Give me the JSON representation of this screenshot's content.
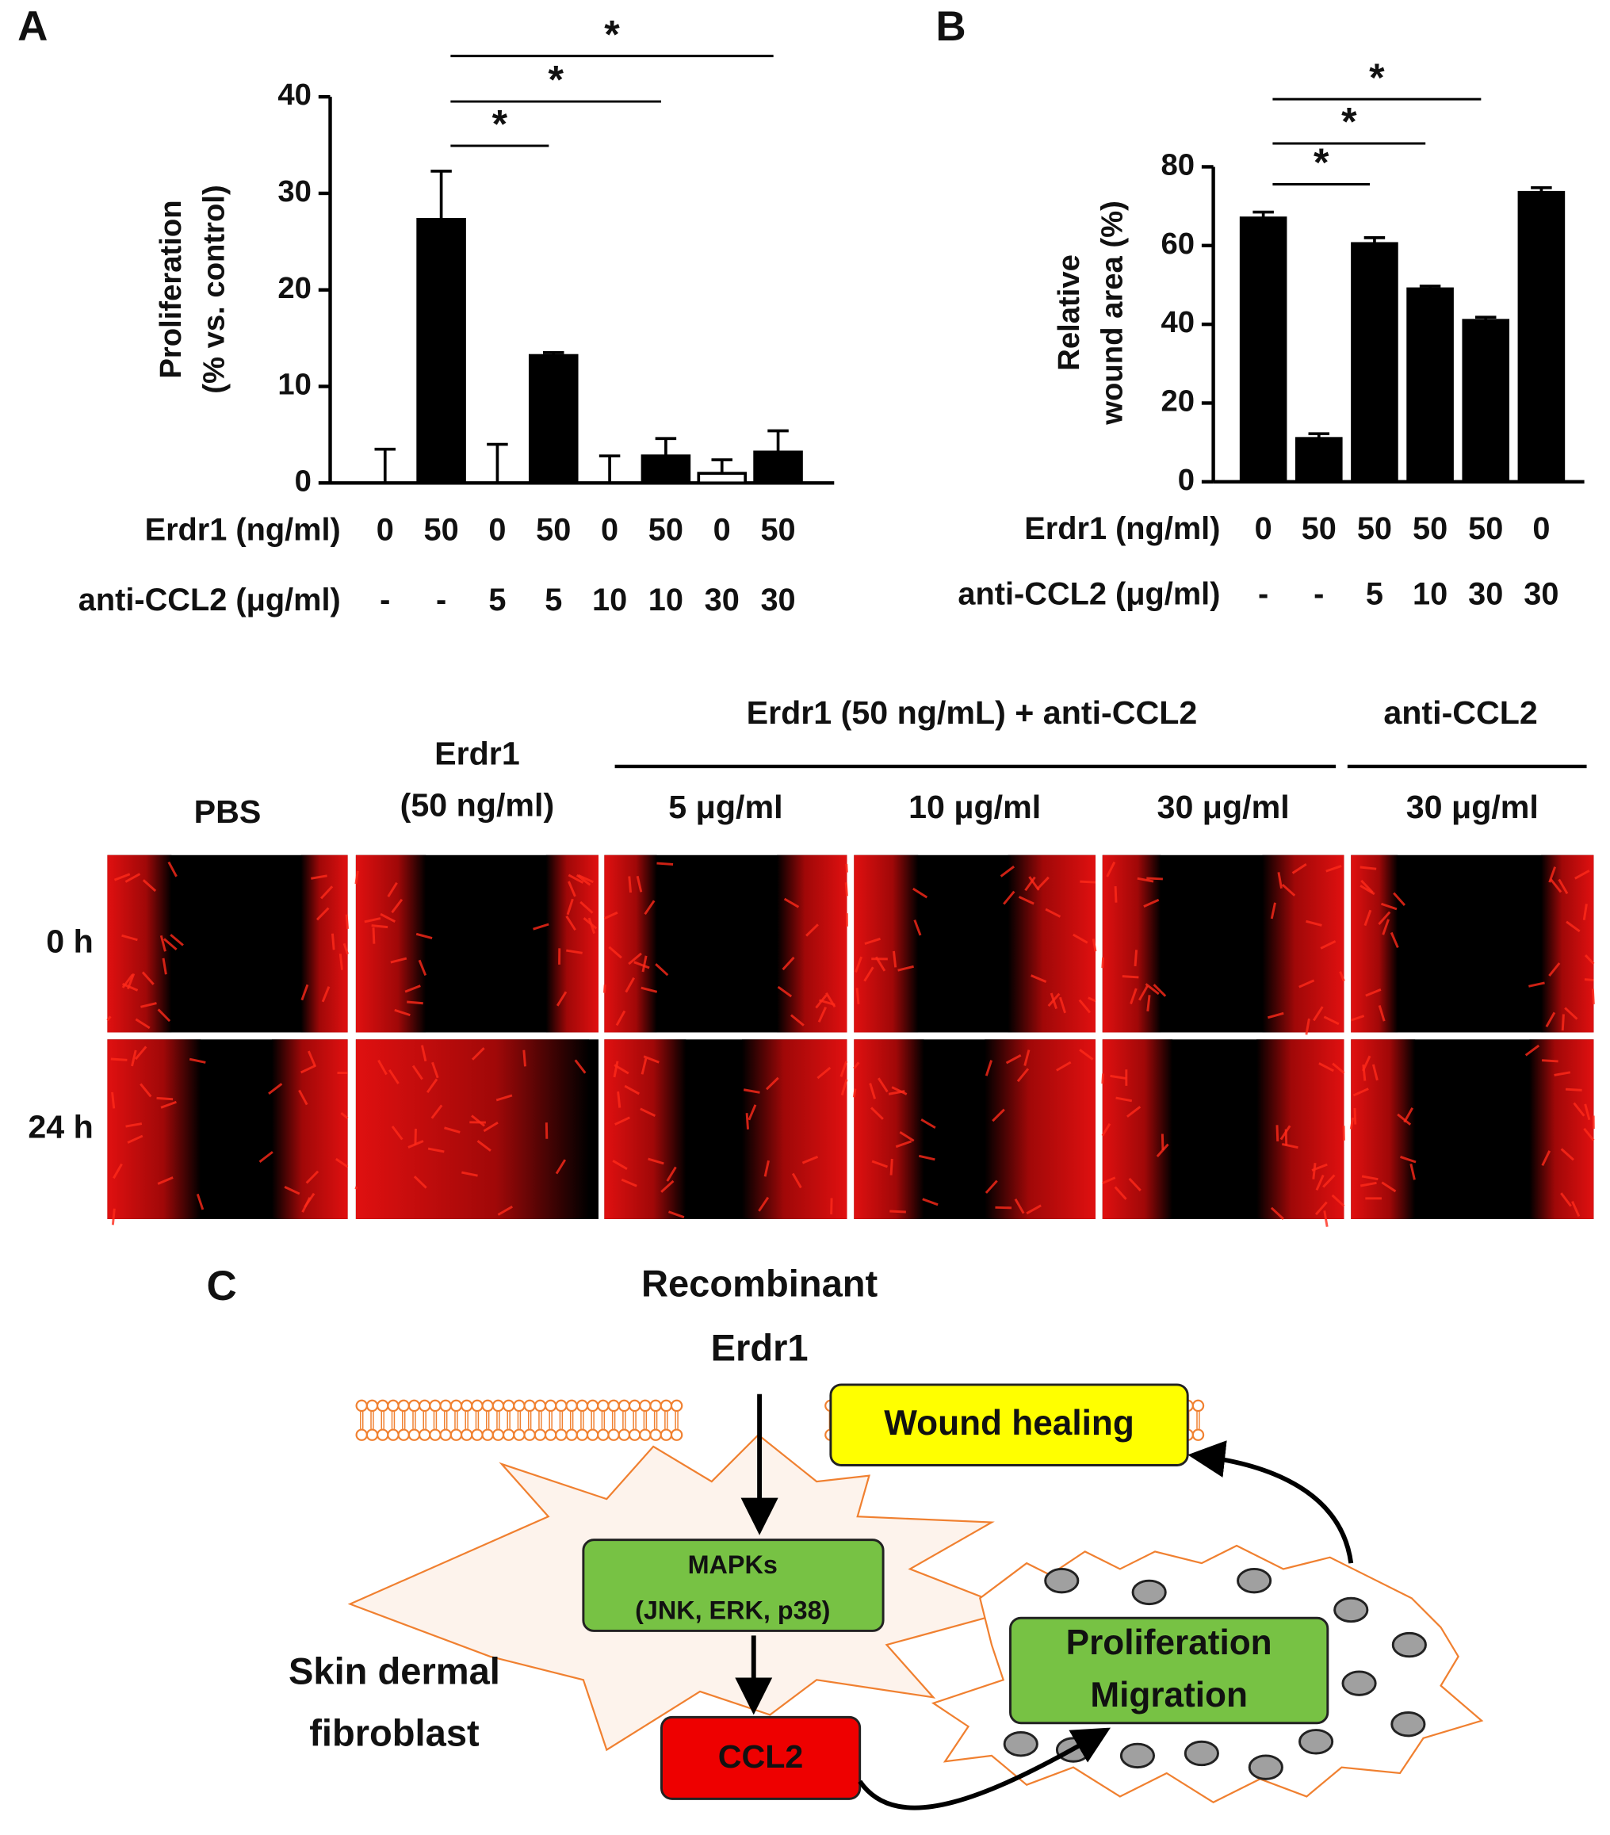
{
  "chart_data": [
    {
      "type": "bar",
      "panel": "A",
      "ylabel": [
        "Proliferation",
        "(% vs. control)"
      ],
      "ylim": [
        0,
        40
      ],
      "yticks": [
        0,
        10,
        20,
        30,
        40
      ],
      "category_rows": [
        {
          "label": "Erdr1 (ng/ml)",
          "labels": [
            "0",
            "50",
            "0",
            "50",
            "0",
            "50",
            "0",
            "50"
          ]
        },
        {
          "label": "anti-CCL2 (μg/ml)",
          "labels": [
            "-",
            "-",
            "5",
            "5",
            "10",
            "10",
            "30",
            "30"
          ]
        }
      ],
      "series": [
        {
          "values": [
            0,
            27.3,
            0,
            13.2,
            0,
            2.8,
            1.0,
            3.2
          ],
          "errors": [
            3.5,
            5.0,
            4.0,
            0.3,
            2.8,
            1.8,
            1.4,
            2.2
          ],
          "colors": [
            "#ffffff",
            "#000000",
            "#ffffff",
            "#000000",
            "#ffffff",
            "#000000",
            "#ffffff",
            "#000000"
          ]
        }
      ],
      "significance": [
        {
          "from": 1,
          "to": 3,
          "label": "*"
        },
        {
          "from": 1,
          "to": 5,
          "label": "*"
        },
        {
          "from": 1,
          "to": 7,
          "label": "*"
        }
      ]
    },
    {
      "type": "bar",
      "panel": "B",
      "ylabel": [
        "Relative",
        "wound area (%)"
      ],
      "ylim": [
        0,
        80
      ],
      "yticks": [
        0,
        20,
        40,
        60,
        80
      ],
      "category_rows": [
        {
          "label": "Erdr1 (ng/ml)",
          "labels": [
            "0",
            "50",
            "50",
            "50",
            "50",
            "0"
          ]
        },
        {
          "label": "anti-CCL2 (μg/ml)",
          "labels": [
            "-",
            "-",
            "5",
            "10",
            "30",
            "30"
          ]
        }
      ],
      "series": [
        {
          "values": [
            67,
            11,
            60.5,
            49,
            41,
            73.5
          ],
          "errors": [
            1.5,
            1.2,
            1.5,
            0.7,
            0.8,
            1.2
          ],
          "colors": [
            "#000000",
            "#000000",
            "#000000",
            "#000000",
            "#000000",
            "#000000"
          ]
        }
      ],
      "significance": [
        {
          "from": 0,
          "to": 2,
          "label": "*"
        },
        {
          "from": 0,
          "to": 3,
          "label": "*"
        },
        {
          "from": 0,
          "to": 4,
          "label": "*"
        }
      ]
    }
  ],
  "micrographs": {
    "group_headers": [
      "Erdr1 (50 ng/mL) + anti-CCL2",
      "anti-CCL2"
    ],
    "columns": [
      [
        "PBS"
      ],
      [
        "Erdr1",
        "(50 ng/ml)"
      ],
      [
        "5 μg/ml"
      ],
      [
        "10 μg/ml"
      ],
      [
        "30 μg/ml"
      ],
      [
        "30 μg/ml"
      ]
    ],
    "rows": [
      "0 h",
      "24 h"
    ]
  },
  "diagram": {
    "panel": "C",
    "stimulus": [
      "Recombinant",
      "Erdr1"
    ],
    "mapks": [
      "MAPKs",
      "(JNK, ERK, p38)"
    ],
    "ccl2": "CCL2",
    "outcome": [
      "Proliferation",
      "Migration"
    ],
    "wound": "Wound healing",
    "cell": [
      "Skin dermal",
      "fibroblast"
    ]
  }
}
